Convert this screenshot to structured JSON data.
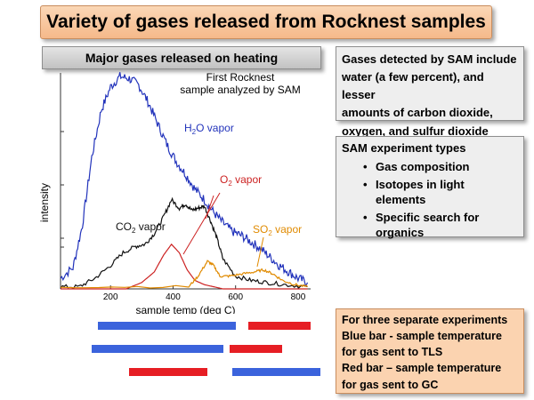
{
  "title": "Variety of gases released from Rocknest samples",
  "subtitle": "Major gases released on heating",
  "gases_note": [
    "Gases detected by SAM include",
    "water (a few percent), and lesser",
    "amounts of carbon dioxide,",
    "oxygen, and sulfur dioxide"
  ],
  "types_note": {
    "heading": "SAM experiment types",
    "items": [
      [
        "Gas composition"
      ],
      [
        "Isotopes in light",
        "elements"
      ],
      [
        "Specific search for",
        "organics"
      ]
    ]
  },
  "experiments_note": [
    "For three separate experiments",
    "Blue bar - sample temperature",
    "for gas sent to TLS",
    "Red bar – sample temperature",
    "for gas sent to GC"
  ],
  "colors": {
    "blue_bar": "#3b63dc",
    "red_bar": "#e61e24",
    "h2o": "#2233bb",
    "co2": "#111111",
    "o2": "#cc2222",
    "so2": "#e08a00"
  },
  "experiment_bars": [
    {
      "blue": [
        160,
        600
      ],
      "red": [
        640,
        840
      ]
    },
    {
      "blue": [
        140,
        560
      ],
      "red": [
        580,
        750
      ]
    },
    {
      "red": [
        260,
        510
      ],
      "blue": [
        590,
        930
      ]
    }
  ],
  "chart_data": {
    "type": "line",
    "xlabel": "sample temp (deg C)",
    "ylabel": "intensity",
    "x_ticks": [
      200,
      400,
      600,
      800
    ],
    "xlim": [
      40,
      840
    ],
    "ylim": [
      0,
      100
    ],
    "annotation": [
      "First Rocknest",
      "sample analyzed by SAM"
    ],
    "series": [
      {
        "name": "H2O vapor",
        "label_base": "H",
        "label_sub": "2",
        "label_rest": "O vapor",
        "x": [
          40,
          80,
          110,
          140,
          170,
          200,
          230,
          260,
          290,
          320,
          350,
          380,
          410,
          440,
          470,
          500,
          530,
          560,
          590,
          620,
          650,
          680,
          710,
          740,
          770,
          800,
          830
        ],
        "y": [
          5,
          10,
          30,
          62,
          84,
          95,
          100,
          99,
          96,
          88,
          78,
          68,
          60,
          54,
          47,
          42,
          36,
          31,
          27,
          25,
          22,
          19,
          15,
          11,
          8,
          5,
          3
        ]
      },
      {
        "name": "CO2 vapor",
        "label_base": "CO",
        "label_sub": "2",
        "label_rest": " vapor",
        "x": [
          40,
          100,
          150,
          200,
          240,
          280,
          310,
          340,
          370,
          395,
          420,
          440,
          460,
          480,
          500,
          520,
          540,
          560,
          600,
          650,
          700,
          760,
          830
        ],
        "y": [
          1,
          1,
          5,
          11,
          17,
          20,
          21,
          26,
          34,
          42,
          38,
          40,
          37,
          38,
          39,
          32,
          24,
          14,
          6,
          4,
          3,
          2,
          1
        ]
      },
      {
        "name": "O2 vapor",
        "label_base": "O",
        "label_sub": "2",
        "label_rest": " vapor",
        "x": [
          40,
          250,
          300,
          340,
          370,
          395,
          420,
          445,
          470,
          500,
          530,
          560,
          600,
          660,
          830
        ],
        "y": [
          0,
          0,
          3,
          8,
          16,
          21,
          17,
          9,
          4,
          2,
          1,
          0,
          0,
          0,
          0
        ]
      },
      {
        "name": "SO2 vapor",
        "label_base": "SO",
        "label_sub": "2",
        "label_rest": " vapor",
        "x": [
          40,
          450,
          480,
          510,
          530,
          550,
          580,
          620,
          660,
          690,
          720,
          750,
          790,
          830
        ],
        "y": [
          1,
          1,
          6,
          13,
          11,
          6,
          6,
          7,
          8,
          9,
          7,
          4,
          2,
          1
        ]
      }
    ]
  }
}
